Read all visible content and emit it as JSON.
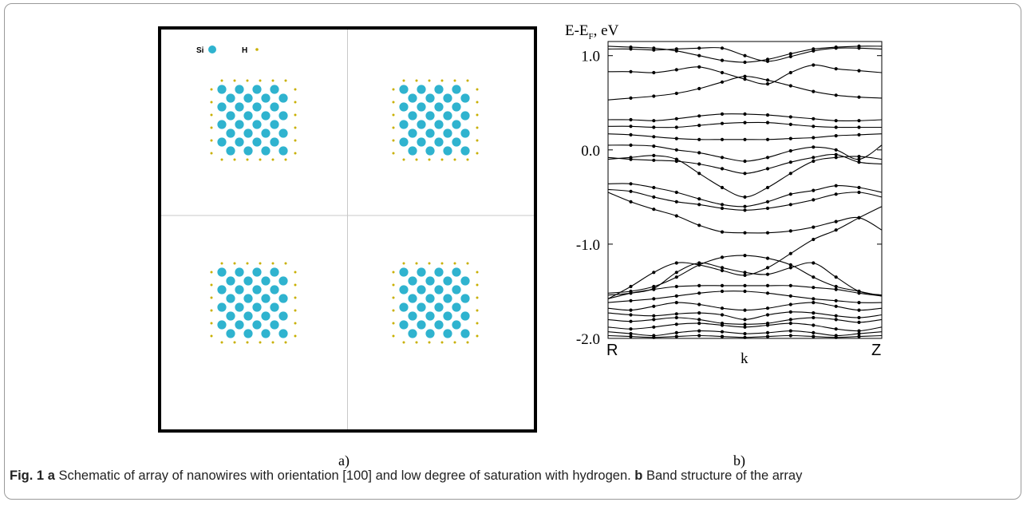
{
  "figure": {
    "panel_a": {
      "label": "a)",
      "legend": [
        {
          "name": "Si",
          "color": "#2fb3cf"
        },
        {
          "name": "H",
          "color": "#c8b000"
        }
      ],
      "wires_grid": {
        "rows": 2,
        "cols": 2,
        "si_lattice": "8x8 checkerboard",
        "h_per_side": 6
      }
    },
    "panel_b": {
      "label": "b)",
      "y_title": "E-E",
      "y_title_sub": "F",
      "y_title_suffix": ", eV",
      "x_title": "k",
      "x_left": "R",
      "x_right": "Z"
    },
    "caption": {
      "fig": "Fig. 1",
      "a": "a",
      "a_text": " Schematic of array of nanowires with orientation [100] and low degree of saturation with hydrogen. ",
      "b": "b",
      "b_text": " Band structure of the array"
    }
  },
  "chart_data": {
    "type": "line",
    "title": "",
    "xlabel": "k",
    "ylabel": "E-EF, eV",
    "ylim": [
      -2.0,
      1.15
    ],
    "yticks": [
      1.0,
      0.0,
      -1.0,
      -2.0
    ],
    "ytick_labels": [
      "1.0",
      "0.0",
      "-1.0",
      "-2.0"
    ],
    "xticks": [
      "R",
      "Z"
    ],
    "x": [
      0,
      0.083,
      0.167,
      0.25,
      0.333,
      0.417,
      0.5,
      0.583,
      0.667,
      0.75,
      0.833,
      0.917,
      1.0
    ],
    "series": [
      {
        "values": [
          1.1,
          1.09,
          1.08,
          1.05,
          1.0,
          0.95,
          0.93,
          0.96,
          1.02,
          1.07,
          1.09,
          1.1,
          1.1
        ]
      },
      {
        "values": [
          1.07,
          1.07,
          1.06,
          1.07,
          1.08,
          1.08,
          1.0,
          0.94,
          0.99,
          1.05,
          1.08,
          1.08,
          1.07
        ]
      },
      {
        "values": [
          0.83,
          0.83,
          0.82,
          0.85,
          0.88,
          0.82,
          0.75,
          0.7,
          0.82,
          0.9,
          0.86,
          0.84,
          0.82
        ]
      },
      {
        "values": [
          0.53,
          0.55,
          0.57,
          0.6,
          0.65,
          0.72,
          0.78,
          0.74,
          0.68,
          0.62,
          0.58,
          0.56,
          0.55
        ]
      },
      {
        "values": [
          0.32,
          0.32,
          0.31,
          0.33,
          0.36,
          0.38,
          0.38,
          0.37,
          0.35,
          0.33,
          0.31,
          0.31,
          0.32
        ]
      },
      {
        "values": [
          0.25,
          0.25,
          0.24,
          0.24,
          0.26,
          0.28,
          0.29,
          0.29,
          0.27,
          0.25,
          0.24,
          0.24,
          0.24
        ]
      },
      {
        "values": [
          0.17,
          0.16,
          0.14,
          0.12,
          0.11,
          0.11,
          0.11,
          0.11,
          0.12,
          0.13,
          0.15,
          0.16,
          0.17
        ]
      },
      {
        "values": [
          0.05,
          0.05,
          0.04,
          0.0,
          -0.03,
          -0.08,
          -0.12,
          -0.08,
          -0.01,
          0.03,
          0.0,
          -0.1,
          0.05
        ]
      },
      {
        "values": [
          -0.08,
          -0.1,
          -0.11,
          -0.12,
          -0.15,
          -0.2,
          -0.25,
          -0.2,
          -0.13,
          -0.08,
          -0.05,
          -0.13,
          -0.15
        ]
      },
      {
        "values": [
          -0.1,
          -0.08,
          -0.06,
          -0.1,
          -0.25,
          -0.4,
          -0.5,
          -0.4,
          -0.25,
          -0.12,
          -0.08,
          -0.07,
          -0.1
        ]
      },
      {
        "values": [
          -0.36,
          -0.36,
          -0.4,
          -0.45,
          -0.52,
          -0.58,
          -0.6,
          -0.55,
          -0.47,
          -0.43,
          -0.38,
          -0.4,
          -0.45
        ]
      },
      {
        "values": [
          -0.42,
          -0.44,
          -0.5,
          -0.55,
          -0.58,
          -0.62,
          -0.64,
          -0.62,
          -0.58,
          -0.53,
          -0.47,
          -0.45,
          -0.5
        ]
      },
      {
        "values": [
          -0.45,
          -0.55,
          -0.63,
          -0.7,
          -0.8,
          -0.87,
          -0.88,
          -0.88,
          -0.86,
          -0.82,
          -0.76,
          -0.72,
          -0.85
        ]
      },
      {
        "values": [
          -1.58,
          -1.45,
          -1.3,
          -1.2,
          -1.22,
          -1.28,
          -1.33,
          -1.25,
          -1.1,
          -0.95,
          -0.85,
          -0.72,
          -0.6
        ]
      },
      {
        "values": [
          -1.52,
          -1.5,
          -1.45,
          -1.35,
          -1.22,
          -1.14,
          -1.12,
          -1.15,
          -1.22,
          -1.35,
          -1.45,
          -1.5,
          -1.55
        ]
      },
      {
        "values": [
          -1.54,
          -1.52,
          -1.47,
          -1.3,
          -1.2,
          -1.25,
          -1.3,
          -1.32,
          -1.25,
          -1.2,
          -1.35,
          -1.5,
          -1.54
        ]
      },
      {
        "values": [
          -1.58,
          -1.52,
          -1.48,
          -1.45,
          -1.44,
          -1.44,
          -1.44,
          -1.44,
          -1.44,
          -1.46,
          -1.48,
          -1.52,
          -1.55
        ]
      },
      {
        "values": [
          -1.62,
          -1.6,
          -1.58,
          -1.55,
          -1.52,
          -1.5,
          -1.5,
          -1.52,
          -1.55,
          -1.58,
          -1.6,
          -1.62,
          -1.62
        ]
      },
      {
        "values": [
          -1.68,
          -1.7,
          -1.66,
          -1.62,
          -1.64,
          -1.68,
          -1.7,
          -1.68,
          -1.64,
          -1.62,
          -1.66,
          -1.7,
          -1.68
        ]
      },
      {
        "values": [
          -1.73,
          -1.75,
          -1.76,
          -1.74,
          -1.73,
          -1.75,
          -1.8,
          -1.75,
          -1.72,
          -1.73,
          -1.76,
          -1.78,
          -1.75
        ]
      },
      {
        "values": [
          -1.8,
          -1.82,
          -1.8,
          -1.78,
          -1.8,
          -1.84,
          -1.85,
          -1.84,
          -1.8,
          -1.78,
          -1.8,
          -1.83,
          -1.8
        ]
      },
      {
        "values": [
          -1.88,
          -1.9,
          -1.88,
          -1.85,
          -1.84,
          -1.86,
          -1.88,
          -1.86,
          -1.84,
          -1.86,
          -1.9,
          -1.92,
          -1.88
        ]
      },
      {
        "values": [
          -1.93,
          -1.95,
          -1.97,
          -1.94,
          -1.92,
          -1.93,
          -1.95,
          -1.94,
          -1.92,
          -1.94,
          -1.97,
          -1.95,
          -1.93
        ]
      },
      {
        "values": [
          -1.97,
          -1.98,
          -1.99,
          -1.98,
          -1.97,
          -1.98,
          -1.99,
          -1.98,
          -1.97,
          -1.98,
          -1.99,
          -1.98,
          -1.97
        ]
      }
    ]
  }
}
